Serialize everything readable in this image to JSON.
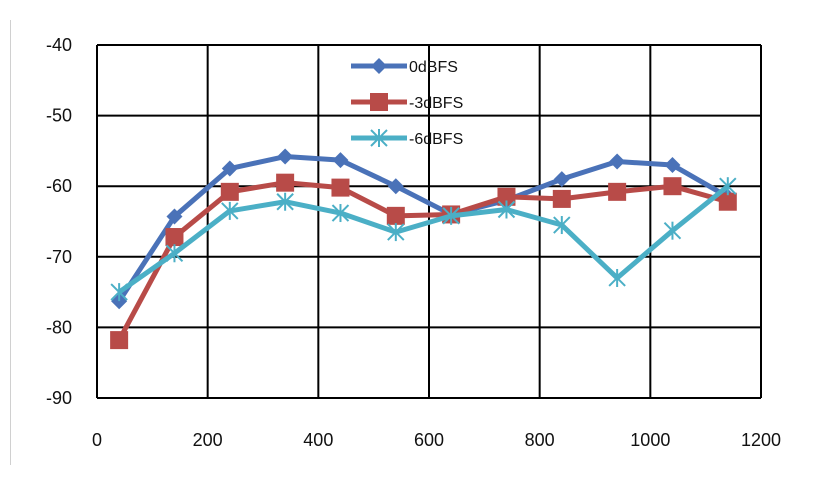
{
  "chart_data": {
    "type": "line",
    "title": "",
    "xlabel": "",
    "ylabel": "",
    "xlim": [
      0,
      1200
    ],
    "ylim": [
      -90,
      -40
    ],
    "x_ticks": [
      "0",
      "200",
      "400",
      "600",
      "800",
      "1000",
      "1200"
    ],
    "y_ticks": [
      "-40",
      "-50",
      "-60",
      "-70",
      "-80",
      "-90"
    ],
    "grid": true,
    "legend_position": "top-center",
    "x": [
      40,
      140,
      240,
      340,
      440,
      540,
      640,
      740,
      840,
      940,
      1040,
      1140
    ],
    "series": [
      {
        "name": "0dBFS",
        "color": "#4a72b8",
        "marker": "diamond",
        "values": [
          -76.3,
          -64.3,
          -57.5,
          -55.8,
          -56.3,
          -60.0,
          -64.0,
          -62.0,
          -59.0,
          -56.5,
          -57.0,
          -61.5
        ]
      },
      {
        "name": "-3dBFS",
        "color": "#b84b48",
        "marker": "square",
        "values": [
          -81.8,
          -67.2,
          -60.8,
          -59.5,
          -60.2,
          -64.2,
          -64.0,
          -61.5,
          -61.8,
          -60.8,
          -60.0,
          -62.2
        ]
      },
      {
        "name": "-6dBFS",
        "color": "#4bafc6",
        "marker": "asterisk",
        "values": [
          -75.0,
          -69.5,
          -63.5,
          -62.2,
          -63.8,
          -66.5,
          -64.2,
          -63.3,
          -65.5,
          -73.0,
          -66.3,
          -60.0
        ]
      }
    ]
  }
}
